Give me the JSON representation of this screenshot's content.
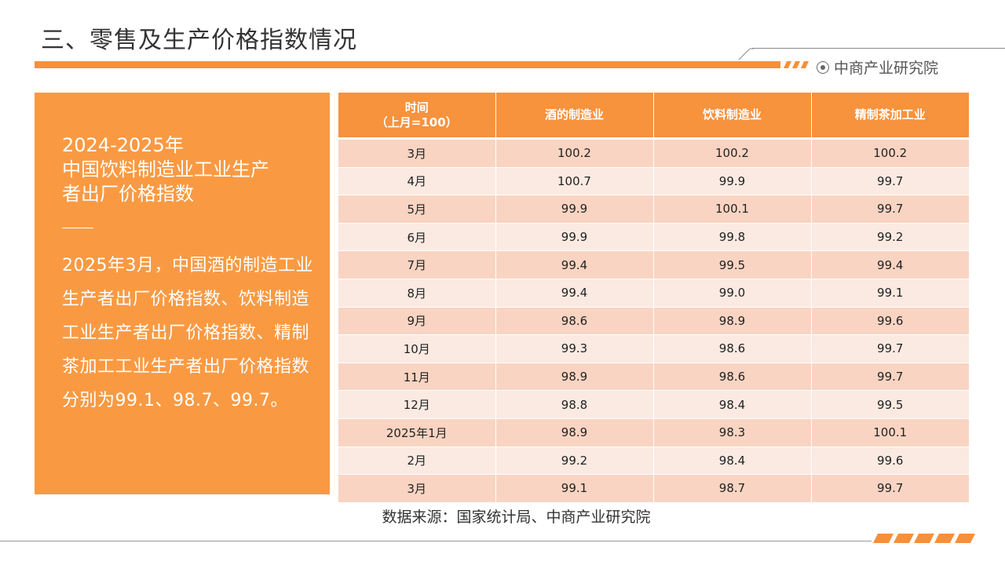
{
  "header": {
    "title": "三、零售及生产价格指数情况",
    "brand": "中商产业研究院",
    "brand_icon": "target-logo-icon"
  },
  "left_panel": {
    "heading_line1": "2024-2025年",
    "heading_line2": "中国饮料制造业工业生产",
    "heading_line3": "者出厂价格指数",
    "body": "2025年3月，中国酒的制造工业生产者出厂价格指数、饮料制造工业生产者出厂价格指数、精制茶加工工业生产者出厂价格指数分别为99.1、98.7、99.7。"
  },
  "table": {
    "col_time_line1": "时间",
    "col_time_line2": "（上月=100）",
    "col_wine": "酒的制造业",
    "col_beverage": "饮料制造业",
    "col_tea": "精制茶加工业",
    "rows": [
      {
        "month": "3月",
        "wine": "100.2",
        "beverage": "100.2",
        "tea": "100.2"
      },
      {
        "month": "4月",
        "wine": "100.7",
        "beverage": "99.9",
        "tea": "99.7"
      },
      {
        "month": "5月",
        "wine": "99.9",
        "beverage": "100.1",
        "tea": "99.7"
      },
      {
        "month": "6月",
        "wine": "99.9",
        "beverage": "99.8",
        "tea": "99.2"
      },
      {
        "month": "7月",
        "wine": "99.4",
        "beverage": "99.5",
        "tea": "99.4"
      },
      {
        "month": "8月",
        "wine": "99.4",
        "beverage": "99.0",
        "tea": "99.1"
      },
      {
        "month": "9月",
        "wine": "98.6",
        "beverage": "98.9",
        "tea": "99.6"
      },
      {
        "month": "10月",
        "wine": "99.3",
        "beverage": "98.6",
        "tea": "99.7"
      },
      {
        "month": "11月",
        "wine": "98.9",
        "beverage": "98.6",
        "tea": "99.7"
      },
      {
        "month": "12月",
        "wine": "98.8",
        "beverage": "98.4",
        "tea": "99.5"
      },
      {
        "month": "2025年1月",
        "wine": "98.9",
        "beverage": "98.3",
        "tea": "100.1"
      },
      {
        "month": "2月",
        "wine": "99.2",
        "beverage": "98.4",
        "tea": "99.6"
      },
      {
        "month": "3月",
        "wine": "99.1",
        "beverage": "98.7",
        "tea": "99.7"
      }
    ]
  },
  "footer": {
    "source": "数据来源：国家统计局、中商产业研究院"
  },
  "colors": {
    "accent_orange": "#f7903a",
    "panel_orange": "#f99a43",
    "row_dark": "#f9d4c2",
    "row_light": "#fbeae2"
  }
}
